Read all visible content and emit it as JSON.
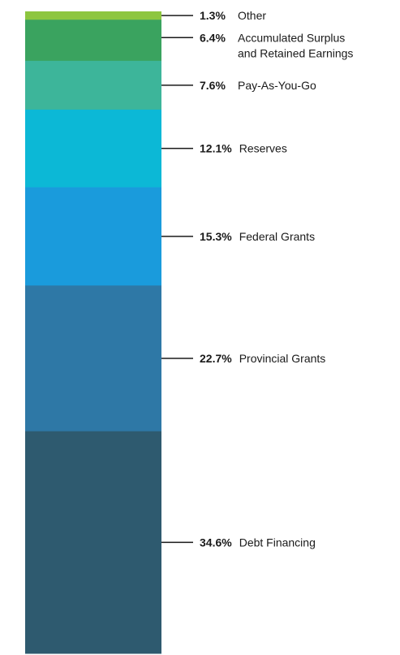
{
  "chart_data": {
    "type": "stacked-bar",
    "title": "",
    "xlabel": "",
    "ylabel": "",
    "unit": "%",
    "segments": [
      {
        "name": "Other",
        "label_lines": [
          "Other"
        ],
        "value": 1.3,
        "value_label": "1.3%",
        "color": "#8dc63f"
      },
      {
        "name": "Accumulated Surplus and Retained Earnings",
        "label_lines": [
          "Accumulated Surplus",
          "and Retained Earnings"
        ],
        "value": 6.4,
        "value_label": "6.4%",
        "color": "#3aa35f"
      },
      {
        "name": "Pay-As-You-Go",
        "label_lines": [
          "Pay-As-You-Go"
        ],
        "value": 7.6,
        "value_label": "7.6%",
        "color": "#3db59a"
      },
      {
        "name": "Reserves",
        "label_lines": [
          "Reserves"
        ],
        "value": 12.1,
        "value_label": "12.1%",
        "color": "#0cb8d6"
      },
      {
        "name": "Federal Grants",
        "label_lines": [
          "Federal Grants"
        ],
        "value": 15.3,
        "value_label": "15.3%",
        "color": "#1a9bdc"
      },
      {
        "name": "Provincial Grants",
        "label_lines": [
          "Provincial Grants"
        ],
        "value": 22.7,
        "value_label": "22.7%",
        "color": "#2e78a6"
      },
      {
        "name": "Debt Financing",
        "label_lines": [
          "Debt Financing"
        ],
        "value": 34.6,
        "value_label": "34.6%",
        "color": "#2e5a6f"
      }
    ]
  }
}
